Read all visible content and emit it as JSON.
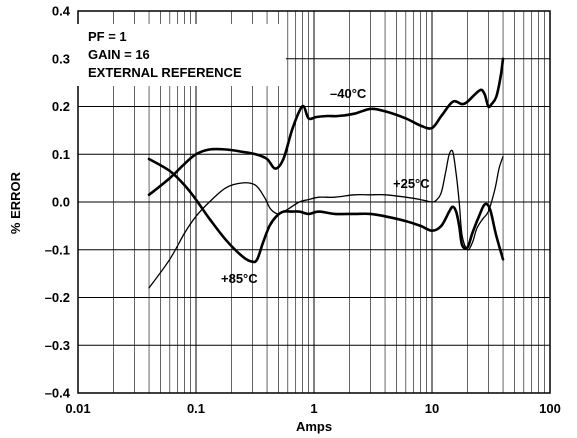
{
  "chart_data": {
    "type": "line",
    "xlabel": "Amps",
    "ylabel": "% ERROR",
    "x_scale": "log",
    "xlim": [
      0.01,
      100
    ],
    "ylim": [
      -0.4,
      0.4
    ],
    "grid": true,
    "x_ticks": [
      "0.01",
      "0.1",
      "1",
      "10",
      "100"
    ],
    "y_ticks": [
      "0.4",
      "0.3",
      "0.2",
      "0.1",
      "0.0",
      "–0.1",
      "–0.2",
      "–0.3",
      "–0.4"
    ],
    "annotations": [
      "PF = 1",
      "GAIN = 16",
      "EXTERNAL REFERENCE"
    ],
    "series": [
      {
        "name": "–40°C",
        "x": [
          0.04,
          0.06,
          0.08,
          0.1,
          0.13,
          0.18,
          0.25,
          0.32,
          0.4,
          0.47,
          0.55,
          0.65,
          0.75,
          0.82,
          0.9,
          1.05,
          1.3,
          1.6,
          2.2,
          3,
          4,
          6,
          8,
          10,
          12,
          15,
          18,
          20,
          23,
          26,
          28,
          30,
          32,
          35,
          38,
          40
        ],
        "y": [
          0.015,
          0.05,
          0.08,
          0.1,
          0.11,
          0.11,
          0.105,
          0.1,
          0.09,
          0.07,
          0.09,
          0.15,
          0.19,
          0.2,
          0.175,
          0.178,
          0.18,
          0.18,
          0.185,
          0.195,
          0.19,
          0.175,
          0.16,
          0.155,
          0.18,
          0.21,
          0.205,
          0.21,
          0.225,
          0.235,
          0.225,
          0.2,
          0.205,
          0.22,
          0.26,
          0.3
        ]
      },
      {
        "name": "+25°C",
        "x": [
          0.04,
          0.06,
          0.08,
          0.1,
          0.13,
          0.18,
          0.25,
          0.32,
          0.38,
          0.43,
          0.5,
          0.6,
          0.75,
          0.9,
          1.1,
          1.5,
          2.2,
          3,
          4,
          6,
          8,
          10,
          11,
          12,
          13,
          14,
          15,
          16,
          17,
          18,
          20,
          22,
          24,
          27,
          30,
          34,
          37,
          40
        ],
        "y": [
          -0.18,
          -0.12,
          -0.065,
          -0.03,
          0.0,
          0.03,
          0.04,
          0.035,
          0.01,
          -0.015,
          -0.025,
          -0.015,
          0.0,
          0.005,
          0.01,
          0.01,
          0.015,
          0.015,
          0.015,
          0.01,
          0.005,
          0.0,
          0.005,
          0.02,
          0.06,
          0.1,
          0.105,
          0.06,
          0.0,
          -0.07,
          -0.1,
          -0.085,
          -0.055,
          -0.035,
          -0.02,
          0.025,
          0.07,
          0.095
        ]
      },
      {
        "name": "+85°C",
        "x": [
          0.04,
          0.06,
          0.08,
          0.1,
          0.13,
          0.18,
          0.25,
          0.3,
          0.33,
          0.37,
          0.42,
          0.48,
          0.55,
          0.65,
          0.75,
          0.9,
          1.1,
          1.5,
          2.2,
          3,
          4,
          6,
          8,
          10,
          12,
          14,
          15,
          16,
          17,
          18,
          20,
          22,
          25,
          28,
          31,
          35,
          40
        ],
        "y": [
          0.09,
          0.065,
          0.035,
          0.005,
          -0.035,
          -0.08,
          -0.115,
          -0.125,
          -0.12,
          -0.085,
          -0.05,
          -0.03,
          -0.02,
          -0.02,
          -0.02,
          -0.025,
          -0.02,
          -0.025,
          -0.025,
          -0.025,
          -0.03,
          -0.04,
          -0.05,
          -0.06,
          -0.05,
          -0.02,
          -0.01,
          -0.02,
          -0.05,
          -0.09,
          -0.095,
          -0.065,
          -0.03,
          -0.005,
          -0.015,
          -0.07,
          -0.12
        ]
      }
    ]
  }
}
